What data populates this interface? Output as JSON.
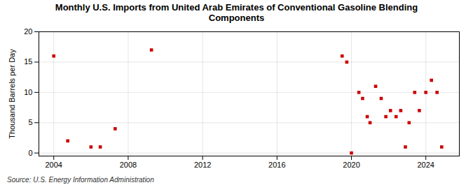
{
  "chart_data": {
    "type": "scatter",
    "title": "Monthly U.S. Imports from United Arab Emirates of Conventional Gasoline Blending\nComponents",
    "ylabel": "Thousand Barrels per Day",
    "caption": "Source: U.S. Energy Information Administration",
    "color": "#cc0000",
    "marker": "square",
    "grid": true,
    "xlim": [
      2003.2,
      2025.8
    ],
    "ylim": [
      -0.5,
      20
    ],
    "xticks": [
      2004,
      2008,
      2012,
      2016,
      2020,
      2024
    ],
    "yticks": [
      0,
      5,
      10,
      15,
      20
    ],
    "x": [
      2004.0,
      2004.75,
      2006.0,
      2006.5,
      2007.3,
      2009.25,
      2019.5,
      2019.75,
      2020.0,
      2020.4,
      2020.6,
      2020.85,
      2021.0,
      2021.3,
      2021.6,
      2021.85,
      2022.1,
      2022.4,
      2022.65,
      2022.9,
      2023.1,
      2023.4,
      2023.65,
      2024.0,
      2024.3,
      2024.6,
      2024.85
    ],
    "values": [
      16,
      2,
      1,
      1,
      4,
      17,
      16,
      15,
      0,
      10,
      9,
      6,
      5,
      11,
      9,
      6,
      7,
      6,
      7,
      1,
      5,
      10,
      7,
      10,
      12,
      10,
      1
    ]
  }
}
